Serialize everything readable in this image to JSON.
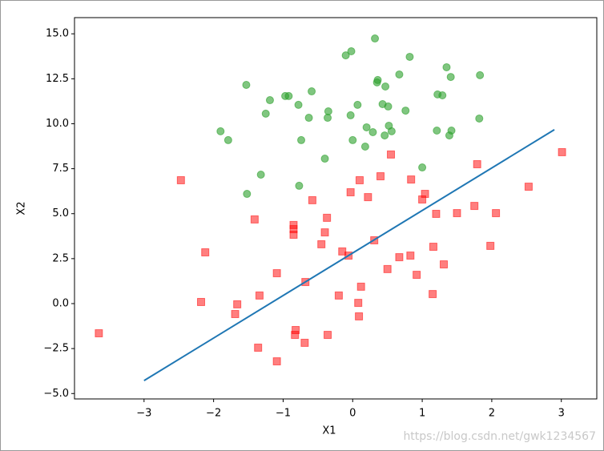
{
  "chart_data": {
    "type": "scatter",
    "xlabel": "X1",
    "ylabel": "X2",
    "watermark": "https://blog.csdn.net/gwk1234567",
    "xlim": [
      -4.0,
      3.51
    ],
    "ylim": [
      -5.3,
      15.9
    ],
    "xticks": [
      {
        "value": -3,
        "label": "−3"
      },
      {
        "value": -2,
        "label": "−2"
      },
      {
        "value": -1,
        "label": "−1"
      },
      0,
      1,
      2,
      3
    ],
    "yticks": [
      {
        "value": -5,
        "label": "−5.0"
      },
      {
        "value": -2.5,
        "label": "−2.5"
      },
      {
        "value": 0,
        "label": "0.0"
      },
      {
        "value": 2.5,
        "label": "2.5"
      },
      {
        "value": 5,
        "label": "5.0"
      },
      {
        "value": 7.5,
        "label": "7.5"
      },
      {
        "value": 10,
        "label": "10.0"
      },
      {
        "value": 12.5,
        "label": "12.5"
      },
      {
        "value": 15,
        "label": "15.0"
      }
    ],
    "series": [
      {
        "marker": "circle",
        "color": "#2ca02c",
        "x": [
          0.32,
          -0.02,
          -0.1,
          0.82,
          1.35,
          1.83,
          1.41,
          0.67,
          0.36,
          0.35,
          0.47,
          -1.53,
          -0.59,
          -0.97,
          -0.92,
          -1.19,
          1.22,
          1.29,
          -0.78,
          0.07,
          0.43,
          0.51,
          0.76,
          -0.35,
          -1.25,
          -0.36,
          -0.63,
          -0.03,
          1.82,
          0.52,
          0.2,
          0.56,
          1.42,
          1.21,
          -1.9,
          0.46,
          0.29,
          1.39,
          0.0,
          -0.74,
          -1.79,
          0.18,
          -0.4,
          1.0,
          -1.32,
          -0.77,
          -1.52
        ],
        "values": [
          14.74,
          14.03,
          13.8,
          13.72,
          13.14,
          12.7,
          12.6,
          12.74,
          12.43,
          12.3,
          12.07,
          12.16,
          11.8,
          11.54,
          11.54,
          11.31,
          11.63,
          11.58,
          11.05,
          11.05,
          11.09,
          10.96,
          10.73,
          10.69,
          10.56,
          10.33,
          10.33,
          10.47,
          10.29,
          9.89,
          9.8,
          9.58,
          9.62,
          9.62,
          9.58,
          9.35,
          9.53,
          9.35,
          9.09,
          9.09,
          9.09,
          8.73,
          8.06,
          7.57,
          7.17,
          6.55,
          6.1
        ]
      },
      {
        "marker": "square",
        "color": "#ff0000",
        "x": [
          -3.65,
          -2.47,
          -2.12,
          -2.18,
          -1.66,
          -1.69,
          -1.41,
          -1.34,
          -1.36,
          -1.09,
          -1.09,
          -0.85,
          -0.85,
          -0.85,
          -0.82,
          -0.83,
          -0.68,
          -0.69,
          -0.58,
          -0.45,
          -0.4,
          -0.37,
          -0.36,
          -0.2,
          -0.15,
          -0.06,
          -0.03,
          0.08,
          0.09,
          0.1,
          0.12,
          0.22,
          0.31,
          0.4,
          0.5,
          0.55,
          0.67,
          0.83,
          0.84,
          0.92,
          1.0,
          1.04,
          1.15,
          1.16,
          1.2,
          1.31,
          1.5,
          1.75,
          1.79,
          1.98,
          2.06,
          2.53,
          3.01
        ],
        "values": [
          -1.65,
          6.86,
          2.85,
          0.09,
          -0.04,
          -0.58,
          4.68,
          0.45,
          -2.45,
          1.69,
          -3.21,
          4.37,
          4.14,
          3.83,
          -1.47,
          -1.74,
          1.2,
          -2.18,
          5.75,
          3.3,
          3.96,
          4.77,
          -1.74,
          0.45,
          2.9,
          2.67,
          6.19,
          0.04,
          -0.71,
          6.86,
          0.94,
          5.92,
          3.52,
          7.08,
          1.92,
          8.29,
          2.58,
          2.67,
          6.9,
          1.6,
          5.79,
          6.1,
          0.53,
          3.16,
          4.99,
          2.18,
          5.03,
          5.43,
          7.75,
          3.21,
          5.03,
          6.5,
          8.42
        ]
      },
      {
        "marker": "line",
        "color": "#1f77b4",
        "x": [
          -3,
          2.9
        ],
        "values": [
          -4.28,
          9.67
        ]
      }
    ]
  }
}
